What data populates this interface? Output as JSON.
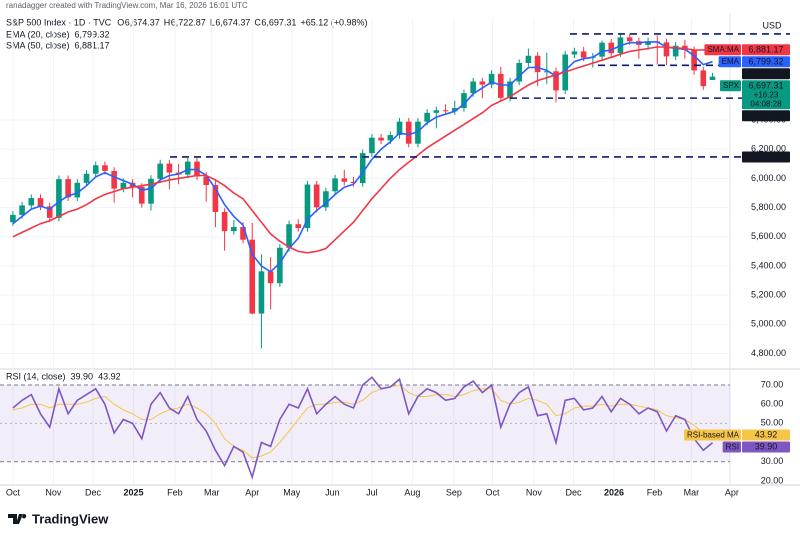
{
  "chart_data": {
    "type": "candlestick",
    "attribution": "ranadagger created with TradingView.com, Mar 16, 2026 16:01 UTC",
    "title": "S&P 500 Index · 1D · TVC",
    "ohlc_labels": [
      {
        "key": "O",
        "text": "6,674.37"
      },
      {
        "key": "H",
        "text": "6,722.87"
      },
      {
        "key": "L",
        "text": "6,674.37"
      },
      {
        "key": "C",
        "text": "6,697.31"
      }
    ],
    "change_label": "+65.12 (+0.98%)",
    "currency": "USD",
    "brand": "TradingView",
    "categories": [
      null,
      null,
      null,
      null,
      null,
      null,
      null,
      null,
      null,
      null,
      null,
      null,
      null,
      null,
      null,
      null,
      null,
      null,
      null,
      null,
      null,
      null,
      null,
      null,
      null,
      null,
      null,
      null,
      null,
      null,
      null,
      null,
      null,
      null,
      null,
      null,
      null,
      null,
      null,
      null,
      null,
      null,
      null,
      null,
      null,
      null,
      null,
      null,
      null,
      null,
      null,
      null,
      null,
      null,
      null,
      null,
      null,
      null,
      null,
      null,
      null,
      null,
      null,
      null,
      null,
      null,
      null,
      null,
      null,
      null,
      null,
      null,
      null,
      null,
      null,
      null,
      null
    ],
    "open": [
      5700,
      5750,
      5815,
      5865,
      5808,
      5730,
      5995,
      5870,
      5970,
      6032,
      6090,
      6051,
      5930,
      5970,
      5942,
      5827,
      5997,
      6101,
      6040,
      6026,
      6115,
      6013,
      5955,
      5770,
      5639,
      5667,
      5580,
      5074,
      5363,
      5282,
      5525,
      5686,
      5660,
      5958,
      5802,
      5912,
      6000,
      5977,
      5968,
      6173,
      6279,
      6260,
      6297,
      6389,
      6238,
      6389,
      6449,
      6467,
      6460,
      6482,
      6584,
      6664,
      6643,
      6716,
      6552,
      6664,
      6791,
      6840,
      6728,
      6734,
      6603,
      6849,
      6870,
      6827,
      6834,
      6930,
      6858,
      6966,
      6940,
      6915,
      6939,
      6932,
      6836,
      6909,
      6879,
      6740,
      6674.37
    ],
    "high": [
      5775,
      5840,
      5890,
      5890,
      5833,
      6020,
      6020,
      5995,
      6057,
      6115,
      6115,
      6076,
      6000,
      5995,
      5967,
      6022,
      6128,
      6126,
      6100,
      6140,
      6147,
      6043,
      5986,
      5795,
      5715,
      5700,
      5695,
      5480,
      5460,
      5550,
      5711,
      5720,
      5983,
      5983,
      5937,
      6025,
      6060,
      6010,
      6198,
      6304,
      6304,
      6322,
      6414,
      6414,
      6414,
      6474,
      6492,
      6508,
      6532,
      6609,
      6689,
      6689,
      6741,
      6764,
      6689,
      6816,
      6890,
      6865,
      6860,
      6759,
      6874,
      6895,
      6901,
      6859,
      6945,
      6955,
      6986,
      6991,
      6965,
      6964,
      6980,
      6957,
      6934,
      6950,
      6904,
      6765,
      6722.87
    ],
    "low": [
      5675,
      5725,
      5790,
      5783,
      5700,
      5705,
      5845,
      5845,
      5945,
      6007,
      6026,
      5835,
      5905,
      5870,
      5800,
      5780,
      5972,
      5925,
      5960,
      6001,
      5988,
      5840,
      5666,
      5505,
      5614,
      5555,
      5069,
      4835,
      5101,
      5257,
      5500,
      5635,
      5635,
      5767,
      5777,
      5887,
      5952,
      5943,
      5943,
      6148,
      6235,
      6235,
      6272,
      6213,
      6213,
      6364,
      6343,
      6435,
      6435,
      6457,
      6559,
      6550,
      6618,
      6527,
      6527,
      6639,
      6766,
      6632,
      6646,
      6521,
      6578,
      6824,
      6802,
      6760,
      6809,
      6833,
      6833,
      6915,
      6820,
      6880,
      6780,
      6775,
      6811,
      6820,
      6710,
      6607,
      6674.37
    ],
    "close": [
      5750,
      5815,
      5865,
      5808,
      5730,
      5995,
      5870,
      5970,
      6032,
      6090,
      6051,
      5930,
      5970,
      5942,
      5827,
      5997,
      6101,
      6040,
      6026,
      6115,
      6013,
      5955,
      5770,
      5639,
      5667,
      5580,
      5074,
      5363,
      5282,
      5525,
      5686,
      5660,
      5958,
      5802,
      5912,
      6000,
      5977,
      5968,
      6173,
      6279,
      6260,
      6297,
      6389,
      6238,
      6389,
      6449,
      6467,
      6460,
      6482,
      6584,
      6664,
      6643,
      6716,
      6552,
      6664,
      6791,
      6840,
      6728,
      6734,
      6603,
      6849,
      6870,
      6827,
      6834,
      6930,
      6858,
      6966,
      6940,
      6915,
      6939,
      6932,
      6836,
      6909,
      6879,
      6740,
      6632,
      6697.31
    ],
    "up_color": "#089981",
    "down_color": "#f23645",
    "overlays": [
      {
        "name": "EMA (20, close)",
        "value_label": "6,799.32",
        "color": "#2962ff",
        "values": [
          5690,
          5740,
          5790,
          5810,
          5790,
          5840,
          5880,
          5900,
          5950,
          6010,
          6040,
          6010,
          5985,
          5960,
          5920,
          5930,
          5990,
          6020,
          6030,
          6060,
          6060,
          6020,
          5930,
          5820,
          5740,
          5680,
          5480,
          5400,
          5360,
          5420,
          5520,
          5590,
          5720,
          5780,
          5830,
          5890,
          5940,
          5960,
          6040,
          6130,
          6200,
          6250,
          6310,
          6300,
          6320,
          6380,
          6420,
          6440,
          6460,
          6510,
          6580,
          6620,
          6660,
          6640,
          6640,
          6700,
          6760,
          6760,
          6740,
          6700,
          6740,
          6800,
          6820,
          6830,
          6870,
          6880,
          6910,
          6930,
          6930,
          6935,
          6935,
          6900,
          6890,
          6885,
          6840,
          6780,
          6799.32
        ]
      },
      {
        "name": "SMA (50, close)",
        "value_label": "6,881.17",
        "color": "#f23645",
        "values": [
          5600,
          5630,
          5660,
          5690,
          5710,
          5740,
          5770,
          5790,
          5820,
          5860,
          5890,
          5910,
          5930,
          5940,
          5950,
          5960,
          5975,
          5990,
          6000,
          6010,
          6020,
          6020,
          5990,
          5950,
          5900,
          5860,
          5780,
          5700,
          5620,
          5570,
          5530,
          5500,
          5490,
          5500,
          5520,
          5580,
          5640,
          5700,
          5780,
          5860,
          5930,
          6000,
          6060,
          6110,
          6160,
          6210,
          6250,
          6290,
          6330,
          6370,
          6410,
          6450,
          6500,
          6530,
          6560,
          6600,
          6640,
          6670,
          6690,
          6710,
          6730,
          6750,
          6770,
          6790,
          6810,
          6830,
          6850,
          6870,
          6880,
          6890,
          6900,
          6900,
          6895,
          6890,
          6880,
          6880,
          6881.17
        ]
      }
    ],
    "xlim": [
      -1.4,
      77.9
    ],
    "xticks": [
      {
        "value": 0,
        "label": "Oct"
      },
      {
        "value": 4.4,
        "label": "Nov"
      },
      {
        "value": 8.7,
        "label": "Dec"
      },
      {
        "value": 13.1,
        "label": "2025"
      },
      {
        "value": 17.6,
        "label": "Feb"
      },
      {
        "value": 21.6,
        "label": "Mar"
      },
      {
        "value": 26,
        "label": "Apr"
      },
      {
        "value": 30.3,
        "label": "May"
      },
      {
        "value": 34.7,
        "label": "Jun"
      },
      {
        "value": 39,
        "label": "Jul"
      },
      {
        "value": 43.4,
        "label": "Aug"
      },
      {
        "value": 47.9,
        "label": "Sep"
      },
      {
        "value": 52.1,
        "label": "Oct"
      },
      {
        "value": 56.6,
        "label": "Nov"
      },
      {
        "value": 60.9,
        "label": "Dec"
      },
      {
        "value": 65.3,
        "label": "2026"
      },
      {
        "value": 69.7,
        "label": "Feb"
      },
      {
        "value": 73.7,
        "label": "Mar"
      },
      {
        "value": 78.1,
        "label": "Apr"
      }
    ],
    "ylim": [
      4701,
      7099
    ],
    "yticks": [
      {
        "value": 4800,
        "label": "4,800.00"
      },
      {
        "value": 5000,
        "label": "5,000.00"
      },
      {
        "value": 5200,
        "label": "5,200.00"
      },
      {
        "value": 5400,
        "label": "5,400.00"
      },
      {
        "value": 5600,
        "label": "5,600.00"
      },
      {
        "value": 5800,
        "label": "5,800.00"
      },
      {
        "value": 6000,
        "label": "6,000.00"
      },
      {
        "value": 6200,
        "label": "6,200.00"
      },
      {
        "value": 6400,
        "label": "6,400.00"
      }
    ],
    "grid": true,
    "levels": [
      {
        "value": 6990
      },
      {
        "value": 6775,
        "label": "6,775.00"
      },
      {
        "value": 6550,
        "label": "6,550.00"
      },
      {
        "value": 6147,
        "label": "6,147.00"
      }
    ],
    "price_labels": [
      {
        "tag": "SMA:MA",
        "value": 6881.17,
        "label": "6,881.17",
        "color": "#f23645"
      },
      {
        "tag": "EMA",
        "value": 6799.32,
        "label": "6,799.32",
        "color": "#2962ff"
      },
      {
        "tag": "SPX",
        "value": 6697.31,
        "label": "6,697.31",
        "sub": [
          "+16.23",
          "04:08:28"
        ],
        "color": "#089981"
      }
    ],
    "rsi": {
      "title": "RSI (14, close)",
      "value_label": "39.90",
      "ma_value_label": "43.92",
      "color": "#7e57c2",
      "ma_color": "#f7c548",
      "values": [
        58,
        62,
        65,
        55,
        48,
        68,
        55,
        62,
        65,
        68,
        60,
        45,
        52,
        50,
        42,
        60,
        66,
        58,
        55,
        64,
        52,
        46,
        36,
        28,
        38,
        35,
        22,
        40,
        38,
        52,
        60,
        58,
        68,
        55,
        60,
        64,
        60,
        58,
        70,
        74,
        68,
        69,
        73,
        55,
        64,
        68,
        66,
        62,
        63,
        69,
        72,
        66,
        70,
        48,
        60,
        66,
        69,
        54,
        55,
        40,
        62,
        63,
        57,
        58,
        64,
        56,
        63,
        60,
        55,
        58,
        56,
        46,
        54,
        52,
        42,
        36,
        39.9
      ],
      "ma_values": [
        57,
        58,
        60,
        60,
        58,
        60,
        60,
        60,
        61,
        63,
        64,
        60,
        57,
        55,
        52,
        52,
        55,
        57,
        58,
        60,
        58,
        55,
        50,
        42,
        38,
        36,
        32,
        33,
        35,
        40,
        46,
        52,
        58,
        60,
        60,
        61,
        61,
        60,
        62,
        66,
        68,
        69,
        70,
        66,
        64,
        64,
        65,
        65,
        64,
        65,
        67,
        68,
        68,
        62,
        60,
        61,
        63,
        62,
        60,
        54,
        55,
        58,
        59,
        59,
        60,
        59,
        60,
        60,
        59,
        58,
        57,
        54,
        53,
        52,
        49,
        45,
        43.92
      ],
      "ylim": [
        18.4,
        77.8
      ],
      "yticks": [
        {
          "value": 20,
          "label": "20.00"
        },
        {
          "value": 30,
          "label": "30.00"
        },
        {
          "value": 50,
          "label": "50.00"
        },
        {
          "value": 60,
          "label": "60.00"
        },
        {
          "value": 70,
          "label": "70.00"
        }
      ],
      "band": [
        30,
        70
      ],
      "price_labels": [
        {
          "tag": "RSI-based MA",
          "value": 43.92,
          "label": "43.92",
          "color": "#f7c548"
        },
        {
          "tag": "RSI",
          "value": 39.9,
          "label": "39.90",
          "color": "#7e57c2"
        }
      ]
    }
  }
}
